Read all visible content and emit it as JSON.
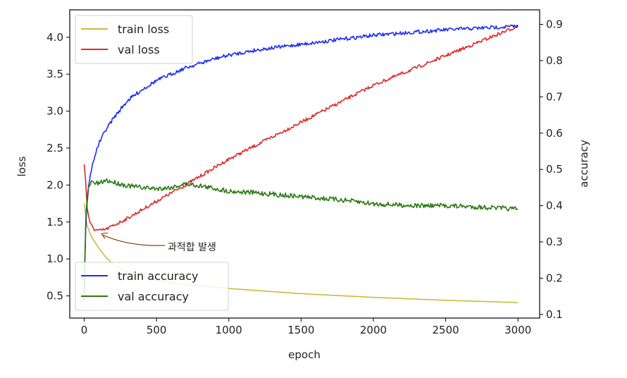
{
  "chart_data": {
    "type": "line",
    "xlabel": "epoch",
    "ylabel_left": "loss",
    "ylabel_right": "accuracy",
    "xlim": [
      -100,
      3150
    ],
    "ylim_left": [
      0.2,
      4.37
    ],
    "ylim_right": [
      0.09,
      0.94
    ],
    "xticks": [
      0,
      500,
      1000,
      1500,
      2000,
      2500,
      3000
    ],
    "yticks_left": [
      0.5,
      1.0,
      1.5,
      2.0,
      2.5,
      3.0,
      3.5,
      4.0
    ],
    "yticks_right": [
      0.1,
      0.2,
      0.3,
      0.4,
      0.5,
      0.6,
      0.7,
      0.8,
      0.9
    ],
    "legend_left": {
      "placement": "top-left"
    },
    "legend_right": {
      "placement": "bottom-left"
    },
    "grid": false,
    "series": [
      {
        "name": "train loss",
        "axis": "left",
        "color": "#c8bc3a",
        "x": [
          0,
          20,
          50,
          100,
          150,
          200,
          300,
          400,
          500,
          700,
          1000,
          1500,
          2000,
          2500,
          3000
        ],
        "y": [
          1.75,
          1.45,
          1.3,
          1.15,
          1.02,
          0.93,
          0.82,
          0.75,
          0.71,
          0.65,
          0.6,
          0.53,
          0.48,
          0.44,
          0.41
        ]
      },
      {
        "name": "val loss",
        "axis": "left",
        "color": "#e0282a",
        "x": [
          0,
          10,
          20,
          40,
          70,
          100,
          150,
          200,
          300,
          500,
          700,
          1000,
          1500,
          2000,
          2500,
          3000
        ],
        "y": [
          2.3,
          2.05,
          1.7,
          1.48,
          1.4,
          1.38,
          1.4,
          1.45,
          1.55,
          1.78,
          2.0,
          2.35,
          2.85,
          3.35,
          3.75,
          4.15
        ]
      },
      {
        "name": "train accuracy",
        "axis": "right",
        "color": "#1c2cf5",
        "x": [
          0,
          5,
          10,
          20,
          30,
          50,
          75,
          100,
          150,
          200,
          300,
          400,
          500,
          700,
          900,
          1000,
          1200,
          1500,
          2000,
          2500,
          3000
        ],
        "y": [
          0.14,
          0.25,
          0.33,
          0.41,
          0.45,
          0.5,
          0.54,
          0.57,
          0.61,
          0.64,
          0.69,
          0.72,
          0.745,
          0.78,
          0.805,
          0.815,
          0.83,
          0.845,
          0.87,
          0.885,
          0.895
        ]
      },
      {
        "name": "val accuracy",
        "axis": "right",
        "color": "#2c7a14",
        "x": [
          0,
          5,
          10,
          20,
          30,
          50,
          100,
          150,
          200,
          300,
          400,
          500,
          600,
          700,
          800,
          1000,
          1200,
          1500,
          1800,
          2000,
          2300,
          2500,
          2800,
          3000
        ],
        "y": [
          0.14,
          0.27,
          0.35,
          0.42,
          0.45,
          0.465,
          0.46,
          0.47,
          0.465,
          0.455,
          0.45,
          0.447,
          0.45,
          0.46,
          0.455,
          0.44,
          0.435,
          0.425,
          0.415,
          0.405,
          0.4,
          0.4,
          0.395,
          0.39
        ]
      }
    ],
    "annotation": {
      "text": "과적합 발생",
      "x": 100,
      "y": 1.38,
      "axis": "left",
      "color": "#d33a22",
      "arrow_color": "#8b4513"
    }
  }
}
